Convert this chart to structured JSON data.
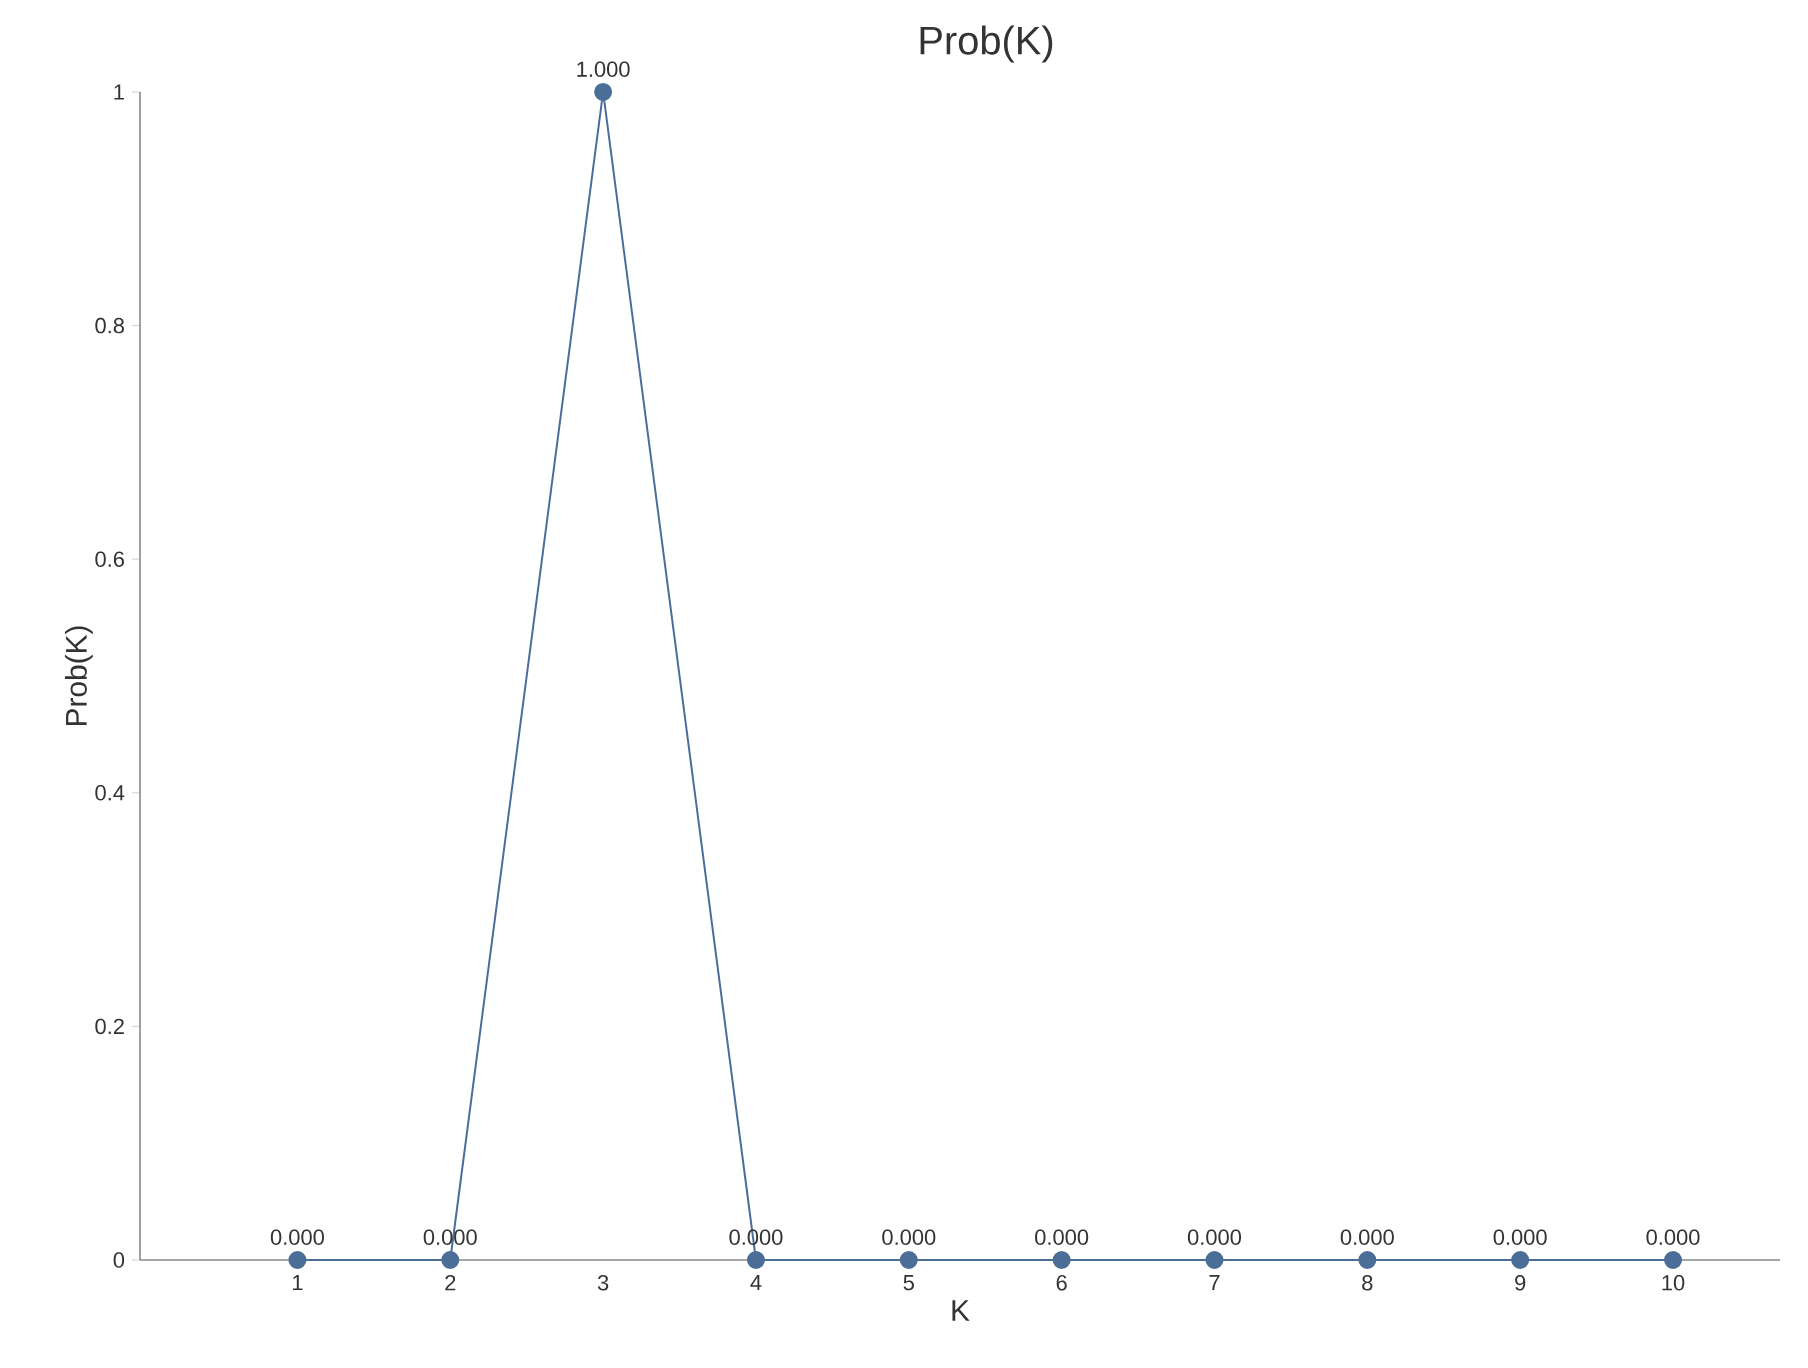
{
  "chart_data": {
    "type": "line",
    "title": "Prob(K)",
    "xlabel": "K",
    "ylabel": "Prob(K)",
    "categories": [
      "1",
      "2",
      "3",
      "4",
      "5",
      "6",
      "7",
      "8",
      "9",
      "10"
    ],
    "series": [
      {
        "color": "#4a6e98",
        "values": [
          0,
          0,
          1,
          0,
          0,
          0,
          0,
          0,
          0,
          0
        ],
        "value_labels": [
          "0.000",
          "0.000",
          "1.000",
          "0.000",
          "0.000",
          "0.000",
          "0.000",
          "0.000",
          "0.000",
          "0.000"
        ]
      }
    ],
    "ylim": [
      0,
      1
    ],
    "yticks": [
      0,
      0.2,
      0.4,
      0.6,
      0.8,
      1
    ],
    "marker": "circle",
    "line_style": "solid"
  }
}
